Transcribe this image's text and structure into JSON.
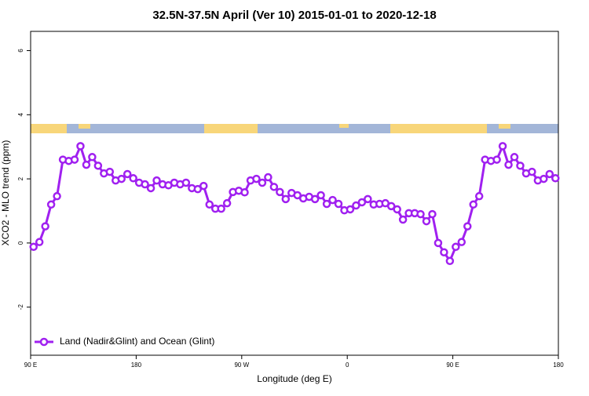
{
  "chart_data": {
    "type": "line",
    "title": "32.5N-37.5N April (Ver 10)   2015-01-01 to 2020-12-18",
    "x_label": "Longitude (deg E)",
    "y_label": "XCO2 - MLO trend (ppm)",
    "x": [
      92.5,
      97.5,
      102.5,
      107.5,
      112.5,
      117.5,
      122.5,
      127.5,
      132.5,
      137.5,
      142.5,
      147.5,
      152.5,
      157.5,
      162.5,
      167.5,
      172.5,
      177.5,
      182.5,
      187.5,
      192.5,
      197.5,
      202.5,
      207.5,
      212.5,
      217.5,
      222.5,
      227.5,
      232.5,
      237.5,
      242.5,
      247.5,
      252.5,
      257.5,
      262.5,
      267.5,
      272.5,
      277.5,
      282.5,
      287.5,
      292.5,
      297.5,
      302.5,
      307.5,
      312.5,
      317.5,
      322.5,
      327.5,
      332.5,
      337.5,
      342.5,
      347.5,
      352.5,
      357.5,
      362.5,
      367.5,
      372.5,
      377.5,
      382.5,
      387.5,
      392.5,
      397.5,
      402.5,
      407.5,
      412.5,
      417.5,
      422.5,
      427.5,
      432.5,
      437.5,
      442.5,
      447.5,
      452.5,
      457.5,
      462.5,
      467.5,
      472.5,
      477.5,
      482.5,
      487.5,
      492.5,
      497.5,
      502.5,
      507.5,
      512.5,
      517.5,
      522.5,
      527.5,
      532.5,
      537.5
    ],
    "series": [
      {
        "name": "Land (Nadir&Glint) and Ocean (Glint)",
        "color": "#a020f0",
        "values": [
          -0.12,
          0.03,
          0.52,
          1.2,
          1.46,
          2.6,
          2.56,
          2.6,
          3.02,
          2.44,
          2.68,
          2.41,
          2.17,
          2.22,
          1.95,
          2.0,
          2.15,
          2.02,
          1.88,
          1.83,
          1.71,
          1.95,
          1.83,
          1.8,
          1.88,
          1.83,
          1.88,
          1.71,
          1.68,
          1.78,
          1.2,
          1.07,
          1.07,
          1.24,
          1.59,
          1.63,
          1.58,
          1.95,
          2.0,
          1.88,
          2.05,
          1.75,
          1.59,
          1.37,
          1.56,
          1.49,
          1.39,
          1.44,
          1.37,
          1.49,
          1.22,
          1.34,
          1.22,
          1.02,
          1.05,
          1.17,
          1.27,
          1.37,
          1.2,
          1.22,
          1.24,
          1.15,
          1.05,
          0.73,
          0.93,
          0.93,
          0.9,
          0.68,
          0.9,
          0.0,
          -0.29,
          -0.56,
          -0.12,
          0.03,
          0.52,
          1.2,
          1.46,
          2.6,
          2.56,
          2.6,
          3.02,
          2.44,
          2.68,
          2.41,
          2.17,
          2.22,
          1.95,
          2.0,
          2.15,
          2.02
        ]
      }
    ],
    "xlim": [
      90,
      540
    ],
    "xticks": [
      {
        "value": 90,
        "label": "90 E"
      },
      {
        "value": 180,
        "label": "180"
      },
      {
        "value": 270,
        "label": "90 W"
      },
      {
        "value": 360,
        "label": "0"
      },
      {
        "value": 450,
        "label": "90 E"
      },
      {
        "value": 540,
        "label": "180"
      }
    ],
    "ylim": [
      -3.5,
      6.6
    ],
    "yticks": [
      -2,
      0,
      2,
      4,
      6
    ],
    "legend": "lower left"
  }
}
